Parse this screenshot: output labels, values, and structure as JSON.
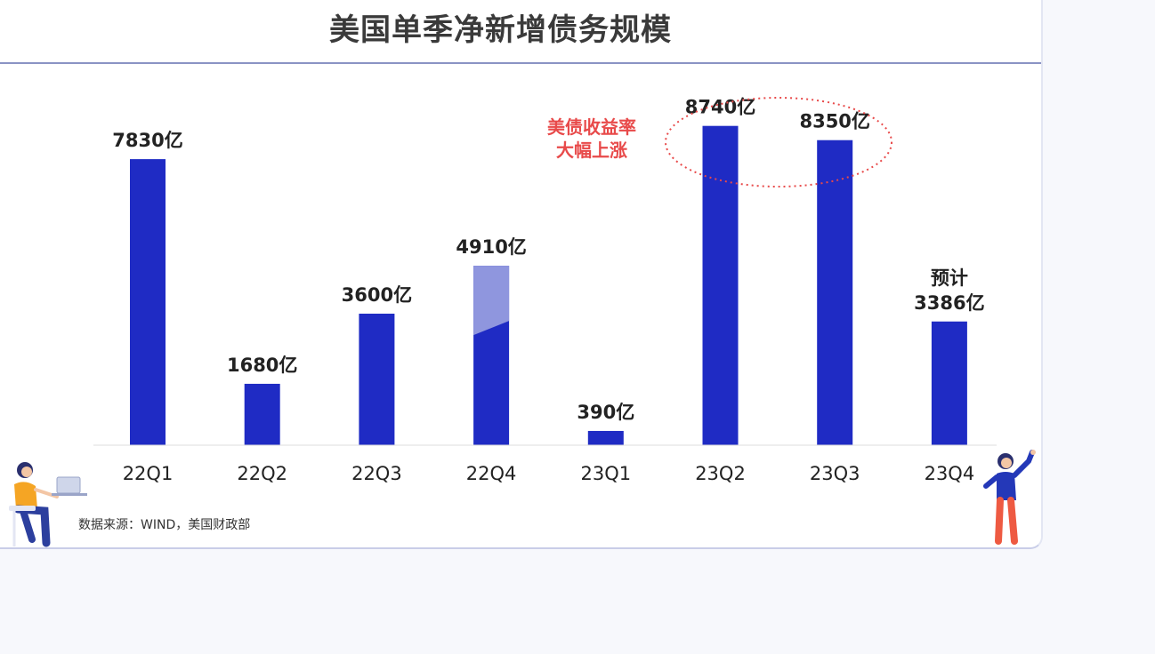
{
  "title": "美国单季净新增债务规模",
  "annotation": {
    "line1": "美债收益率",
    "line2": "大幅上涨",
    "color": "#e84a4a"
  },
  "source": "数据来源：WIND，美国财政部",
  "colors": {
    "bar": "#1f2bc4",
    "bar_light": "#8f96de",
    "rule": "#8a93c4",
    "highlight_ring": "#e84a4a"
  },
  "chart_data": {
    "type": "bar",
    "title": "美国单季净新增债务规模",
    "categories": [
      "22Q1",
      "22Q2",
      "22Q3",
      "22Q4",
      "23Q1",
      "23Q2",
      "23Q3",
      "23Q4"
    ],
    "values": [
      7830,
      1680,
      3600,
      4910,
      390,
      8740,
      8350,
      3386
    ],
    "value_labels": [
      "7830亿",
      "1680亿",
      "3600亿",
      "4910亿",
      "390亿",
      "8740亿",
      "8350亿",
      "3386亿"
    ],
    "forecast_label": {
      "category": "23Q4",
      "text": "预计"
    },
    "ylim": [
      0,
      9000
    ],
    "grid": false,
    "highlighted_categories": [
      "23Q2",
      "23Q3"
    ]
  }
}
